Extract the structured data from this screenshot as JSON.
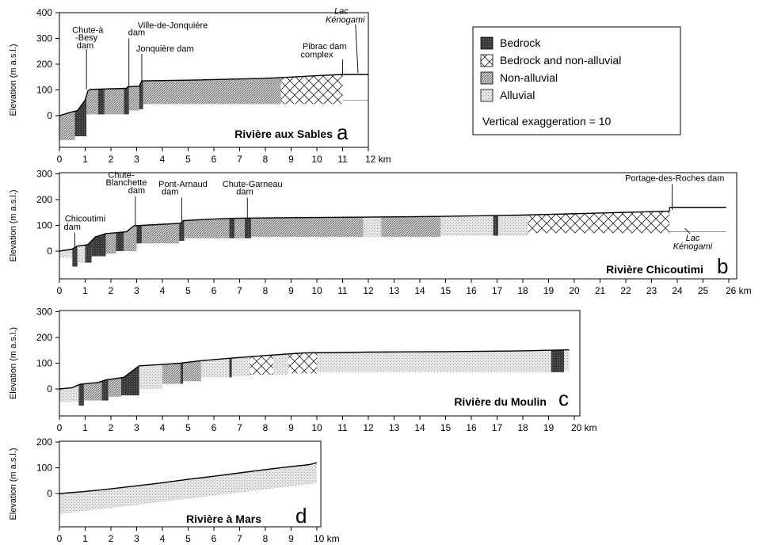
{
  "legend": {
    "items": [
      {
        "label": "Bedrock",
        "pattern": "bedrock"
      },
      {
        "label": "Bedrock and non-alluvial",
        "pattern": "cross"
      },
      {
        "label": "Non-alluvial",
        "pattern": "nonall"
      },
      {
        "label": "Alluvial",
        "pattern": "alluvial"
      }
    ],
    "note": "Vertical exaggeration = 10"
  },
  "chart_data": [
    {
      "type": "area",
      "title": "Rivière aux Sables",
      "panel_letter": "a",
      "xlabel": "km",
      "ylabel": "Elevation (m a.s.l.)",
      "xlim": [
        0,
        12
      ],
      "ylim": [
        -100,
        400
      ],
      "yticks": [
        0,
        100,
        200,
        300,
        400
      ],
      "xticks": [
        0,
        1,
        2,
        3,
        4,
        5,
        6,
        7,
        8,
        9,
        10,
        11,
        12
      ],
      "profile": [
        [
          0,
          0
        ],
        [
          0.4,
          12
        ],
        [
          0.7,
          20
        ],
        [
          0.85,
          40
        ],
        [
          1.0,
          60
        ],
        [
          1.1,
          95
        ],
        [
          1.2,
          102
        ],
        [
          2.6,
          106
        ],
        [
          2.65,
          112
        ],
        [
          3.1,
          114
        ],
        [
          3.2,
          135
        ],
        [
          5,
          138
        ],
        [
          8,
          145
        ],
        [
          9,
          150
        ],
        [
          10,
          155
        ],
        [
          11,
          160
        ]
      ],
      "segments": [
        {
          "from": 0,
          "to": 0.6,
          "type": "nonall",
          "bottom": -95
        },
        {
          "from": 0.6,
          "to": 1.05,
          "type": "bedrock",
          "bottom": -80
        },
        {
          "from": 1.05,
          "to": 1.5,
          "type": "nonall",
          "bottom": 5
        },
        {
          "from": 1.5,
          "to": 1.75,
          "type": "bedrock",
          "bottom": 5
        },
        {
          "from": 1.75,
          "to": 2.5,
          "type": "nonall",
          "bottom": 5
        },
        {
          "from": 2.5,
          "to": 2.7,
          "type": "bedrock",
          "bottom": 5
        },
        {
          "from": 2.7,
          "to": 3.1,
          "type": "nonall",
          "bottom": 20
        },
        {
          "from": 3.1,
          "to": 3.25,
          "type": "bedrock",
          "bottom": 25
        },
        {
          "from": 3.25,
          "to": 8.6,
          "type": "nonall",
          "bottom": 45
        },
        {
          "from": 8.6,
          "to": 11.0,
          "type": "cross",
          "bottom": 45
        }
      ],
      "extension": {
        "from": 11,
        "to": 12,
        "top": 160,
        "bottom": 60
      },
      "annotations": [
        {
          "text": "Chute-à",
          "x": 1.1,
          "y": 322
        },
        {
          "text": "-Besy",
          "x": 1.05,
          "y": 292
        },
        {
          "text": "dam",
          "x": 1.0,
          "y": 262
        },
        {
          "text": "Ville-de-Jonquière",
          "x": 4.4,
          "y": 340
        },
        {
          "text": "dam",
          "x": 3.0,
          "y": 312
        },
        {
          "text": "Jonquière dam",
          "x": 4.1,
          "y": 250
        },
        {
          "text": "Pibrac dam",
          "x": 10.3,
          "y": 258
        },
        {
          "text": "complex",
          "x": 10.0,
          "y": 226
        },
        {
          "text": "Lac",
          "x": 10.95,
          "y": 395
        },
        {
          "text": "Kénogami",
          "x": 11.1,
          "y": 362
        }
      ]
    },
    {
      "type": "area",
      "title": "Rivière Chicoutimi",
      "panel_letter": "b",
      "xlabel": "km",
      "ylabel": "Elevation (m a.s.l.)",
      "xlim": [
        0,
        26
      ],
      "ylim": [
        -100,
        300
      ],
      "yticks": [
        0,
        100,
        200,
        300
      ],
      "xticks": [
        0,
        1,
        2,
        3,
        4,
        5,
        6,
        7,
        8,
        9,
        10,
        11,
        12,
        13,
        14,
        15,
        16,
        17,
        18,
        19,
        20,
        21,
        22,
        23,
        24,
        25,
        26
      ],
      "profile": [
        [
          0,
          0
        ],
        [
          0.5,
          8
        ],
        [
          0.7,
          20
        ],
        [
          1.1,
          25
        ],
        [
          1.4,
          55
        ],
        [
          1.8,
          68
        ],
        [
          2.6,
          75
        ],
        [
          2.9,
          98
        ],
        [
          3.2,
          100
        ],
        [
          4.7,
          108
        ],
        [
          4.8,
          118
        ],
        [
          6,
          125
        ],
        [
          7,
          128
        ],
        [
          9,
          130
        ],
        [
          12,
          132
        ],
        [
          15,
          135
        ],
        [
          18,
          140
        ],
        [
          21,
          148
        ],
        [
          23.7,
          155
        ]
      ],
      "segments": [
        {
          "from": 0,
          "to": 0.5,
          "type": "alluvial",
          "bottom": -25
        },
        {
          "from": 0.5,
          "to": 0.7,
          "type": "bedrock",
          "bottom": -60
        },
        {
          "from": 0.7,
          "to": 1.0,
          "type": "alluvial",
          "bottom": -45
        },
        {
          "from": 1.0,
          "to": 1.25,
          "type": "bedrock",
          "bottom": -45
        },
        {
          "from": 1.25,
          "to": 1.8,
          "type": "bedrock",
          "bottom": -20
        },
        {
          "from": 1.8,
          "to": 2.2,
          "type": "nonall",
          "bottom": -10
        },
        {
          "from": 2.2,
          "to": 2.5,
          "type": "bedrock",
          "bottom": 0
        },
        {
          "from": 2.5,
          "to": 3.0,
          "type": "nonall",
          "bottom": 0
        },
        {
          "from": 3.0,
          "to": 3.2,
          "type": "bedrock",
          "bottom": 30
        },
        {
          "from": 3.2,
          "to": 4.65,
          "type": "nonall",
          "bottom": 30
        },
        {
          "from": 4.65,
          "to": 4.85,
          "type": "bedrock",
          "bottom": 40
        },
        {
          "from": 4.85,
          "to": 6.6,
          "type": "nonall",
          "bottom": 50
        },
        {
          "from": 6.6,
          "to": 6.8,
          "type": "bedrock",
          "bottom": 50
        },
        {
          "from": 6.8,
          "to": 7.2,
          "type": "nonall",
          "bottom": 50
        },
        {
          "from": 7.2,
          "to": 7.45,
          "type": "bedrock",
          "bottom": 50
        },
        {
          "from": 7.45,
          "to": 11.8,
          "type": "nonall",
          "bottom": 55
        },
        {
          "from": 11.8,
          "to": 12.5,
          "type": "alluvial",
          "bottom": 55
        },
        {
          "from": 12.5,
          "to": 14.8,
          "type": "nonall",
          "bottom": 55
        },
        {
          "from": 14.8,
          "to": 16.85,
          "type": "alluvial",
          "bottom": 60
        },
        {
          "from": 16.85,
          "to": 17.05,
          "type": "bedrock",
          "bottom": 60
        },
        {
          "from": 17.05,
          "to": 18.2,
          "type": "alluvial",
          "bottom": 60
        },
        {
          "from": 18.2,
          "to": 23.7,
          "type": "cross",
          "bottom": 70
        }
      ],
      "extension": {
        "from": 23.7,
        "to": 25.9,
        "top": 170,
        "bottom": 75
      },
      "annotations": [
        {
          "text": "Chicoutimi",
          "x": 1.0,
          "y": 115
        },
        {
          "text": "dam",
          "x": 0.5,
          "y": 83
        },
        {
          "text": "Chute-",
          "x": 2.4,
          "y": 285
        },
        {
          "text": "Blanchette",
          "x": 2.6,
          "y": 255
        },
        {
          "text": "dam",
          "x": 3.0,
          "y": 225
        },
        {
          "text": "Pont-Arnaud",
          "x": 4.8,
          "y": 250
        },
        {
          "text": "dam",
          "x": 4.3,
          "y": 220
        },
        {
          "text": "Chute-Garneau",
          "x": 7.5,
          "y": 250
        },
        {
          "text": "dam",
          "x": 7.2,
          "y": 220
        },
        {
          "text": "Portage-des-Roches dam",
          "x": 23.9,
          "y": 272
        },
        {
          "text": "Lac",
          "x": 24.6,
          "y": 40
        },
        {
          "text": "Kénogami",
          "x": 24.6,
          "y": 8
        }
      ]
    },
    {
      "type": "area",
      "title": "Rivière du Moulin",
      "panel_letter": "c",
      "xlabel": "km",
      "ylabel": "Elevation (m a.s.l.)",
      "xlim": [
        0,
        20
      ],
      "ylim": [
        -100,
        300
      ],
      "yticks": [
        0,
        100,
        200,
        300
      ],
      "xticks": [
        0,
        1,
        2,
        3,
        4,
        5,
        6,
        7,
        8,
        9,
        10,
        11,
        12,
        13,
        14,
        15,
        16,
        17,
        18,
        19,
        20
      ],
      "profile": [
        [
          0,
          0
        ],
        [
          0.5,
          5
        ],
        [
          0.8,
          18
        ],
        [
          1.5,
          25
        ],
        [
          1.8,
          35
        ],
        [
          2.5,
          45
        ],
        [
          2.9,
          75
        ],
        [
          3.1,
          90
        ],
        [
          4,
          95
        ],
        [
          4.7,
          100
        ],
        [
          5.5,
          110
        ],
        [
          6.5,
          118
        ],
        [
          8,
          130
        ],
        [
          9.5,
          140
        ],
        [
          12,
          143
        ],
        [
          15,
          145
        ],
        [
          18,
          148
        ],
        [
          19.8,
          152
        ]
      ],
      "segments": [
        {
          "from": 0,
          "to": 0.75,
          "type": "alluvial",
          "bottom": -50
        },
        {
          "from": 0.75,
          "to": 0.95,
          "type": "bedrock",
          "bottom": -65
        },
        {
          "from": 0.95,
          "to": 1.65,
          "type": "nonall",
          "bottom": -45
        },
        {
          "from": 1.65,
          "to": 1.9,
          "type": "bedrock",
          "bottom": -45
        },
        {
          "from": 1.9,
          "to": 2.4,
          "type": "nonall",
          "bottom": -30
        },
        {
          "from": 2.4,
          "to": 3.1,
          "type": "bedrock",
          "bottom": -25
        },
        {
          "from": 3.1,
          "to": 4.0,
          "type": "alluvial",
          "bottom": 0
        },
        {
          "from": 4.0,
          "to": 4.7,
          "type": "nonall",
          "bottom": 20
        },
        {
          "from": 4.7,
          "to": 4.8,
          "type": "bedrock",
          "bottom": 20
        },
        {
          "from": 4.8,
          "to": 5.5,
          "type": "nonall",
          "bottom": 30
        },
        {
          "from": 5.5,
          "to": 6.6,
          "type": "alluvial",
          "bottom": 45
        },
        {
          "from": 6.6,
          "to": 6.7,
          "type": "bedrock",
          "bottom": 45
        },
        {
          "from": 6.7,
          "to": 7.4,
          "type": "alluvial",
          "bottom": 50
        },
        {
          "from": 7.4,
          "to": 8.3,
          "type": "cross",
          "bottom": 55
        },
        {
          "from": 8.3,
          "to": 8.9,
          "type": "alluvial",
          "bottom": 55
        },
        {
          "from": 8.9,
          "to": 10.0,
          "type": "cross",
          "bottom": 60
        },
        {
          "from": 10.0,
          "to": 19.1,
          "type": "alluvial",
          "bottom": 65
        },
        {
          "from": 19.1,
          "to": 19.6,
          "type": "bedrock",
          "bottom": 65
        },
        {
          "from": 19.6,
          "to": 19.8,
          "type": "alluvial",
          "bottom": 70
        }
      ]
    },
    {
      "type": "area",
      "title": "Rivière à Mars",
      "panel_letter": "d",
      "xlabel": "km",
      "ylabel": "Elevation (m a.s.l.)",
      "xlim": [
        0,
        10
      ],
      "ylim": [
        -100,
        200
      ],
      "yticks": [
        0,
        100,
        200
      ],
      "xticks": [
        0,
        1,
        2,
        3,
        4,
        5,
        6,
        7,
        8,
        9,
        10
      ],
      "profile": [
        [
          0,
          0
        ],
        [
          1,
          8
        ],
        [
          2,
          18
        ],
        [
          3,
          30
        ],
        [
          4,
          42
        ],
        [
          5,
          55
        ],
        [
          6,
          67
        ],
        [
          7,
          80
        ],
        [
          8,
          93
        ],
        [
          9,
          105
        ],
        [
          9.7,
          112
        ],
        [
          10,
          120
        ]
      ],
      "segments": [
        {
          "from": 0,
          "to": 10,
          "type": "alluvial",
          "bottom": -80,
          "bottom_end": 40
        }
      ]
    }
  ]
}
